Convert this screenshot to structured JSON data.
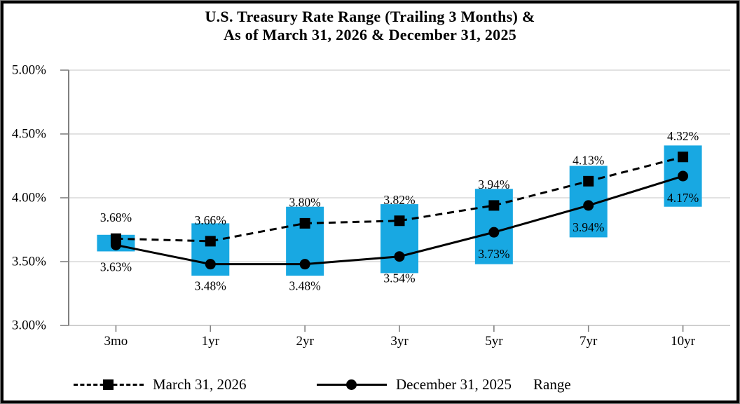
{
  "title": {
    "line1": "U.S. Treasury Rate Range (Trailing 3 Months) &",
    "line2": "As of March 31, 2026 & December 31, 2025"
  },
  "colors": {
    "range_fill": "#18A8E2",
    "line": "#000000",
    "gridline": "#D9D9D9",
    "axis": "#808080",
    "axis_bottom": "#BFBFBF"
  },
  "chart_data": {
    "type": "combo",
    "subtype": "floating range bars with two line series",
    "categories": [
      "3mo",
      "1yr",
      "2yr",
      "3yr",
      "5yr",
      "7yr",
      "10yr"
    ],
    "series": [
      {
        "name": "March 31, 2026",
        "type": "line",
        "line_style": "dashed",
        "marker": "square",
        "values": [
          3.68,
          3.66,
          3.8,
          3.82,
          3.94,
          4.13,
          4.32
        ],
        "data_labels": [
          "3.68%",
          "3.66%",
          "3.80%",
          "3.82%",
          "3.94%",
          "4.13%",
          "4.32%"
        ],
        "label_position": "above"
      },
      {
        "name": "December 31, 2025",
        "type": "line",
        "line_style": "solid",
        "marker": "circle",
        "values": [
          3.63,
          3.48,
          3.48,
          3.54,
          3.73,
          3.94,
          4.17
        ],
        "data_labels": [
          "3.63%",
          "3.48%",
          "3.48%",
          "3.54%",
          "3.73%",
          "3.94%",
          "4.17%"
        ],
        "label_position": "below"
      },
      {
        "name": "Range",
        "type": "bar",
        "bar_style": "floating",
        "low": [
          3.58,
          3.39,
          3.39,
          3.41,
          3.48,
          3.69,
          3.93
        ],
        "high": [
          3.71,
          3.8,
          3.93,
          3.95,
          4.07,
          4.25,
          4.41
        ]
      }
    ],
    "ylim": [
      3.0,
      5.0
    ],
    "yticks": {
      "values": [
        5.0,
        4.5,
        4.0,
        3.5,
        3.0
      ],
      "labels": [
        "5.00%",
        "4.50%",
        "4.00%",
        "3.50%",
        "3.00%"
      ]
    },
    "grid": "horizontal",
    "legend_position": "bottom"
  },
  "legend": {
    "items": [
      {
        "label": "March 31, 2026"
      },
      {
        "label": "December 31, 2025"
      },
      {
        "label": "Range"
      }
    ]
  }
}
